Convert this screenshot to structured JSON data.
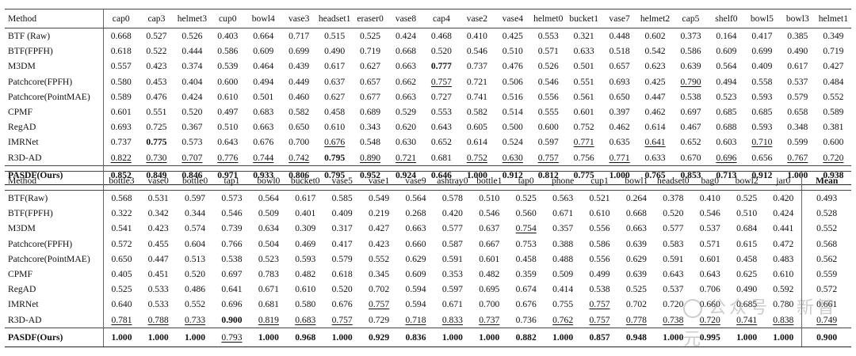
{
  "table1": {
    "method_header": "Method",
    "columns": [
      "cap0",
      "cap3",
      "helmet3",
      "cup0",
      "bowl4",
      "vase3",
      "headset1",
      "eraser0",
      "vase8",
      "cap4",
      "vase2",
      "vase4",
      "helmet0",
      "bucket1",
      "vase7",
      "helmet2",
      "cap5",
      "shelf0",
      "bowl5",
      "bowl3",
      "helmet1"
    ],
    "rows": [
      {
        "method": "BTF (Raw)",
        "values": [
          "0.668",
          "0.527",
          "0.526",
          "0.403",
          "0.664",
          "0.717",
          "0.515",
          "0.525",
          "0.424",
          "0.468",
          "0.410",
          "0.425",
          "0.553",
          "0.321",
          "0.448",
          "0.602",
          "0.373",
          "0.164",
          "0.417",
          "0.385",
          "0.349"
        ],
        "bold": [],
        "underline": []
      },
      {
        "method": "BTF(FPFH)",
        "values": [
          "0.618",
          "0.522",
          "0.444",
          "0.586",
          "0.609",
          "0.699",
          "0.490",
          "0.719",
          "0.668",
          "0.520",
          "0.546",
          "0.510",
          "0.571",
          "0.633",
          "0.518",
          "0.542",
          "0.586",
          "0.609",
          "0.699",
          "0.490",
          "0.719"
        ],
        "bold": [],
        "underline": []
      },
      {
        "method": "M3DM",
        "values": [
          "0.557",
          "0.423",
          "0.374",
          "0.539",
          "0.464",
          "0.439",
          "0.617",
          "0.627",
          "0.663",
          "0.777",
          "0.737",
          "0.476",
          "0.526",
          "0.501",
          "0.657",
          "0.623",
          "0.639",
          "0.564",
          "0.409",
          "0.617",
          "0.427"
        ],
        "bold": [
          9
        ],
        "underline": []
      },
      {
        "method": "Patchcore(FPFH)",
        "values": [
          "0.580",
          "0.453",
          "0.404",
          "0.600",
          "0.494",
          "0.449",
          "0.637",
          "0.657",
          "0.662",
          "0.757",
          "0.721",
          "0.506",
          "0.546",
          "0.551",
          "0.693",
          "0.425",
          "0.790",
          "0.494",
          "0.558",
          "0.537",
          "0.484"
        ],
        "bold": [],
        "underline": [
          9,
          16
        ]
      },
      {
        "method": "Patchcore(PointMAE)",
        "values": [
          "0.589",
          "0.476",
          "0.424",
          "0.610",
          "0.501",
          "0.460",
          "0.627",
          "0.677",
          "0.663",
          "0.727",
          "0.741",
          "0.516",
          "0.556",
          "0.561",
          "0.650",
          "0.447",
          "0.538",
          "0.523",
          "0.593",
          "0.579",
          "0.552"
        ],
        "bold": [],
        "underline": []
      },
      {
        "method": "CPMF",
        "values": [
          "0.601",
          "0.551",
          "0.520",
          "0.497",
          "0.683",
          "0.582",
          "0.458",
          "0.689",
          "0.529",
          "0.553",
          "0.582",
          "0.514",
          "0.555",
          "0.601",
          "0.397",
          "0.462",
          "0.697",
          "0.685",
          "0.685",
          "0.658",
          "0.589"
        ],
        "bold": [],
        "underline": []
      },
      {
        "method": "RegAD",
        "values": [
          "0.693",
          "0.725",
          "0.367",
          "0.510",
          "0.663",
          "0.650",
          "0.610",
          "0.343",
          "0.620",
          "0.643",
          "0.605",
          "0.500",
          "0.600",
          "0.752",
          "0.462",
          "0.614",
          "0.467",
          "0.688",
          "0.593",
          "0.348",
          "0.381"
        ],
        "bold": [],
        "underline": []
      },
      {
        "method": "IMRNet",
        "values": [
          "0.737",
          "0.775",
          "0.573",
          "0.643",
          "0.676",
          "0.700",
          "0.676",
          "0.548",
          "0.630",
          "0.652",
          "0.614",
          "0.524",
          "0.597",
          "0.771",
          "0.635",
          "0.641",
          "0.652",
          "0.603",
          "0.710",
          "0.599",
          "0.600"
        ],
        "bold": [
          1
        ],
        "underline": [
          6,
          13,
          15,
          18
        ]
      },
      {
        "method": "R3D-AD",
        "values": [
          "0.822",
          "0.730",
          "0.707",
          "0.776",
          "0.744",
          "0.742",
          "0.795",
          "0.890",
          "0.721",
          "0.681",
          "0.752",
          "0.630",
          "0.757",
          "0.756",
          "0.771",
          "0.633",
          "0.670",
          "0.696",
          "0.656",
          "0.767",
          "0.720"
        ],
        "bold": [
          6
        ],
        "underline": [
          0,
          1,
          2,
          3,
          4,
          5,
          7,
          8,
          10,
          11,
          12,
          14,
          17,
          19,
          20
        ]
      }
    ],
    "ours": {
      "method": "PASDF(Ours)",
      "values": [
        "0.852",
        "0.849",
        "0.846",
        "0.971",
        "0.933",
        "0.806",
        "0.795",
        "0.952",
        "0.924",
        "0.646",
        "1.000",
        "0.912",
        "0.812",
        "0.775",
        "1.000",
        "0.765",
        "0.853",
        "0.713",
        "0.912",
        "1.000",
        "0.938"
      ]
    }
  },
  "table2": {
    "method_header": "Method",
    "columns": [
      "bottle3",
      "vase0",
      "bottle0",
      "tap1",
      "bowl0",
      "bucket0",
      "vase5",
      "vase1",
      "vase9",
      "ashtray0",
      "bottle1",
      "tap0",
      "phone",
      "cup1",
      "bowl1",
      "headset0",
      "bag0",
      "bowl2",
      "jar0"
    ],
    "mean_header": "Mean",
    "rows": [
      {
        "method": "BTF(Raw)",
        "values": [
          "0.568",
          "0.531",
          "0.597",
          "0.573",
          "0.564",
          "0.617",
          "0.585",
          "0.549",
          "0.564",
          "0.578",
          "0.510",
          "0.525",
          "0.563",
          "0.521",
          "0.264",
          "0.378",
          "0.410",
          "0.525",
          "0.420"
        ],
        "mean": "0.493",
        "bold": [],
        "underline": []
      },
      {
        "method": "BTF(FPFH)",
        "values": [
          "0.322",
          "0.342",
          "0.344",
          "0.546",
          "0.509",
          "0.401",
          "0.409",
          "0.219",
          "0.268",
          "0.420",
          "0.546",
          "0.560",
          "0.671",
          "0.610",
          "0.668",
          "0.520",
          "0.546",
          "0.510",
          "0.424"
        ],
        "mean": "0.528",
        "bold": [],
        "underline": []
      },
      {
        "method": "M3DM",
        "values": [
          "0.541",
          "0.423",
          "0.574",
          "0.739",
          "0.634",
          "0.309",
          "0.317",
          "0.427",
          "0.663",
          "0.577",
          "0.637",
          "0.754",
          "0.357",
          "0.556",
          "0.663",
          "0.577",
          "0.537",
          "0.684",
          "0.441"
        ],
        "mean": "0.552",
        "bold": [],
        "underline": [
          11
        ]
      },
      {
        "method": "Patchcore(FPFH)",
        "values": [
          "0.572",
          "0.455",
          "0.604",
          "0.766",
          "0.504",
          "0.469",
          "0.417",
          "0.423",
          "0.660",
          "0.587",
          "0.667",
          "0.753",
          "0.388",
          "0.586",
          "0.639",
          "0.583",
          "0.571",
          "0.615",
          "0.472"
        ],
        "mean": "0.568",
        "bold": [],
        "underline": []
      },
      {
        "method": "Patchcore(PointMAE)",
        "values": [
          "0.650",
          "0.447",
          "0.513",
          "0.538",
          "0.523",
          "0.593",
          "0.579",
          "0.552",
          "0.629",
          "0.591",
          "0.601",
          "0.458",
          "0.488",
          "0.556",
          "0.629",
          "0.591",
          "0.601",
          "0.458",
          "0.483"
        ],
        "mean": "0.562",
        "bold": [],
        "underline": []
      },
      {
        "method": "CPMF",
        "values": [
          "0.405",
          "0.451",
          "0.520",
          "0.697",
          "0.783",
          "0.482",
          "0.618",
          "0.345",
          "0.609",
          "0.353",
          "0.482",
          "0.359",
          "0.509",
          "0.499",
          "0.639",
          "0.643",
          "0.643",
          "0.625",
          "0.610"
        ],
        "mean": "0.559",
        "bold": [],
        "underline": []
      },
      {
        "method": "RegAD",
        "values": [
          "0.525",
          "0.533",
          "0.486",
          "0.641",
          "0.671",
          "0.610",
          "0.520",
          "0.702",
          "0.594",
          "0.597",
          "0.695",
          "0.674",
          "0.414",
          "0.538",
          "0.525",
          "0.537",
          "0.706",
          "0.490",
          "0.592"
        ],
        "mean": "0.572",
        "bold": [],
        "underline": []
      },
      {
        "method": "IMRNet",
        "values": [
          "0.640",
          "0.533",
          "0.552",
          "0.696",
          "0.681",
          "0.580",
          "0.676",
          "0.757",
          "0.594",
          "0.671",
          "0.700",
          "0.676",
          "0.755",
          "0.757",
          "0.702",
          "0.720",
          "0.660",
          "0.685",
          "0.780"
        ],
        "mean": "0.661",
        "bold": [],
        "underline": [
          7,
          13
        ]
      },
      {
        "method": "R3D-AD",
        "values": [
          "0.781",
          "0.788",
          "0.733",
          "0.900",
          "0.819",
          "0.683",
          "0.757",
          "0.729",
          "0.718",
          "0.833",
          "0.737",
          "0.736",
          "0.762",
          "0.757",
          "0.778",
          "0.738",
          "0.720",
          "0.741",
          "0.838"
        ],
        "mean": "0.749",
        "bold": [
          3
        ],
        "underline": [
          0,
          1,
          2,
          4,
          5,
          6,
          8,
          9,
          10,
          12,
          13,
          14,
          15,
          16,
          17,
          18,
          19
        ]
      }
    ],
    "ours": {
      "method": "PASDF(Ours)",
      "values": [
        "1.000",
        "1.000",
        "1.000",
        "0.793",
        "1.000",
        "0.968",
        "1.000",
        "0.929",
        "0.836",
        "1.000",
        "1.000",
        "0.882",
        "1.000",
        "0.857",
        "0.948",
        "1.000",
        "0.995",
        "1.000",
        "1.000"
      ],
      "mean": "0.900",
      "underline": [
        3
      ]
    }
  },
  "watermark": {
    "text": "公众号 · 新智元"
  }
}
